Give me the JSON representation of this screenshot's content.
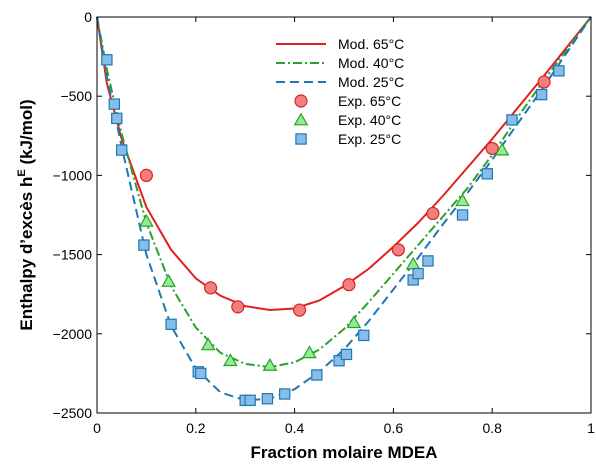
{
  "chart_data": {
    "type": "line",
    "title": "",
    "xlabel": "Fraction molaire MDEA",
    "ylabel_main": "Enthalpy d’excès h",
    "ylabel_sup": "E",
    "ylabel_unit": " (kJ/mol)",
    "xlim": [
      0,
      1
    ],
    "ylim": [
      -2500,
      0
    ],
    "xticks": [
      0,
      0.2,
      0.4,
      0.6,
      0.8,
      1
    ],
    "xtick_labels": [
      "0",
      "0.2",
      "0.4",
      "0.6",
      "0.8",
      "1"
    ],
    "yticks": [
      0,
      -500,
      -1000,
      -1500,
      -2000,
      -2500
    ],
    "ytick_labels": [
      "0",
      "−500",
      "−1000",
      "−1500",
      "−2000",
      "−2500"
    ],
    "grid": false,
    "legend_position": "top-center",
    "series": [
      {
        "name": "Mod. 65°C",
        "kind": "model",
        "color": "#e02020",
        "dash": "solid",
        "x": [
          0,
          0.02,
          0.05,
          0.1,
          0.15,
          0.2,
          0.25,
          0.3,
          0.35,
          0.4,
          0.45,
          0.5,
          0.55,
          0.6,
          0.65,
          0.7,
          0.75,
          0.8,
          0.85,
          0.9,
          0.95,
          1
        ],
        "y": [
          0,
          -420,
          -770,
          -1200,
          -1470,
          -1650,
          -1760,
          -1825,
          -1850,
          -1840,
          -1790,
          -1700,
          -1590,
          -1450,
          -1300,
          -1130,
          -950,
          -770,
          -580,
          -390,
          -195,
          0
        ]
      },
      {
        "name": "Mod. 40°C",
        "kind": "model",
        "color": "#2ca02c",
        "dash": "dashdot",
        "x": [
          0,
          0.02,
          0.05,
          0.1,
          0.15,
          0.2,
          0.25,
          0.3,
          0.35,
          0.4,
          0.45,
          0.5,
          0.55,
          0.6,
          0.65,
          0.7,
          0.75,
          0.8,
          0.85,
          0.9,
          0.95,
          1
        ],
        "y": [
          0,
          -330,
          -740,
          -1300,
          -1700,
          -1960,
          -2120,
          -2190,
          -2210,
          -2180,
          -2100,
          -1970,
          -1800,
          -1620,
          -1440,
          -1260,
          -1080,
          -870,
          -640,
          -420,
          -210,
          0
        ]
      },
      {
        "name": "Mod. 25°C",
        "kind": "model",
        "color": "#1f77b4",
        "dash": "dashed",
        "x": [
          0,
          0.02,
          0.05,
          0.1,
          0.15,
          0.2,
          0.25,
          0.3,
          0.35,
          0.4,
          0.45,
          0.5,
          0.55,
          0.6,
          0.65,
          0.7,
          0.75,
          0.8,
          0.85,
          0.9,
          0.95,
          1
        ],
        "y": [
          0,
          -380,
          -820,
          -1500,
          -1950,
          -2220,
          -2370,
          -2420,
          -2410,
          -2350,
          -2240,
          -2100,
          -1920,
          -1720,
          -1520,
          -1310,
          -1110,
          -900,
          -680,
          -460,
          -230,
          0
        ]
      },
      {
        "name": "Exp. 65°C",
        "kind": "experimental",
        "marker": "circle",
        "color": "#e02020",
        "fill": "#f08080",
        "x": [
          0.1,
          0.23,
          0.285,
          0.41,
          0.51,
          0.61,
          0.68,
          0.8,
          0.905
        ],
        "y": [
          -1000,
          -1710,
          -1830,
          -1850,
          -1690,
          -1470,
          -1240,
          -830,
          -410
        ]
      },
      {
        "name": "Exp. 40°C",
        "kind": "experimental",
        "marker": "triangle",
        "color": "#2ca02c",
        "fill": "#90ee90",
        "x": [
          0.1,
          0.145,
          0.225,
          0.27,
          0.35,
          0.43,
          0.52,
          0.64,
          0.74,
          0.82
        ],
        "y": [
          -1290,
          -1670,
          -2070,
          -2170,
          -2200,
          -2120,
          -1930,
          -1560,
          -1160,
          -840
        ]
      },
      {
        "name": "Exp. 25°C",
        "kind": "experimental",
        "marker": "square",
        "color": "#1f77b4",
        "fill": "#87bde8",
        "x": [
          0.02,
          0.035,
          0.04,
          0.05,
          0.095,
          0.15,
          0.205,
          0.21,
          0.3,
          0.31,
          0.345,
          0.38,
          0.445,
          0.49,
          0.505,
          0.54,
          0.64,
          0.65,
          0.67,
          0.74,
          0.79,
          0.84,
          0.9,
          0.935
        ],
        "y": [
          -270,
          -550,
          -640,
          -840,
          -1440,
          -1940,
          -2240,
          -2250,
          -2420,
          -2420,
          -2410,
          -2380,
          -2260,
          -2170,
          -2130,
          -2010,
          -1660,
          -1620,
          -1540,
          -1250,
          -990,
          -650,
          -490,
          -340
        ]
      }
    ]
  }
}
